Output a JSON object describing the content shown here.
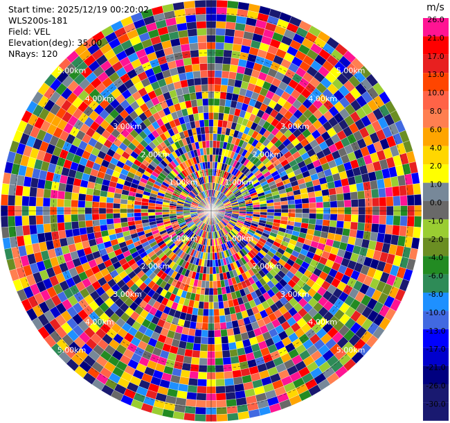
{
  "info": {
    "start_time": "Start time: 2025/12/19 00:20:02",
    "station": "WLS200s-181",
    "field": "Field: VEL",
    "elevation": "Elevation(deg): 35.00",
    "nrays": "NRays: 120"
  },
  "chart_data": {
    "type": "heatmap",
    "projection": "polar-ppi",
    "field": "VEL",
    "units": "m/s",
    "nrays": 120,
    "range_rings_km": [
      "1.00km",
      "2.00km",
      "3.00km",
      "4.00km",
      "5.00km"
    ],
    "colorbar": {
      "label": "m/s",
      "ticks": [
        "26.0",
        "21.0",
        "17.0",
        "13.0",
        "10.0",
        "8.0",
        "6.0",
        "4.0",
        "2.0",
        "1.0",
        "0.0",
        "-1.0",
        "-2.0",
        "-4.0",
        "-6.0",
        "-8.0",
        "-10.0",
        "-13.0",
        "-17.0",
        "-21.0",
        "-26.0",
        "-30.0"
      ],
      "colors": [
        "#ff1493",
        "#ff0000",
        "#e82020",
        "#ff4500",
        "#ff6347",
        "#ff7f50",
        "#ffa500",
        "#ffd700",
        "#ffff00",
        "#778899",
        "#696969",
        "#9acd32",
        "#6b8e23",
        "#228b22",
        "#2e8b57",
        "#1e90ff",
        "#4169e1",
        "#0000ff",
        "#0000cd",
        "#000080",
        "#191970",
        "#191970"
      ]
    }
  }
}
